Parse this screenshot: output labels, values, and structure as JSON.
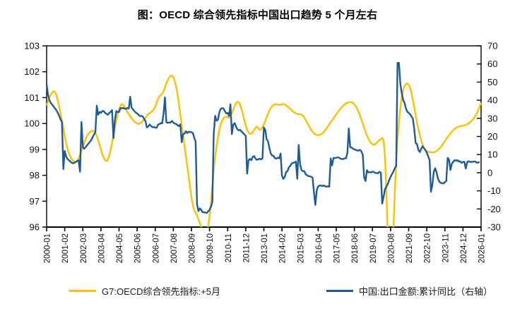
{
  "title": "图：OECD 综合领先指标中国出口趋势 5 个月左右",
  "legend": [
    {
      "label": "G7:OECD综合领先指标:+5月",
      "color": "#FFC000"
    },
    {
      "label": "中国:出口金额:累计同比（右轴）",
      "color": "#1F5B99"
    }
  ],
  "chart_data": {
    "type": "line",
    "title": "图：OECD 综合领先指标中国出口趋势 5 个月左右",
    "x_start": "2000-01",
    "x_end": "2026-01",
    "x_frequency": "monthly",
    "x_tick_labels": [
      "2000-01",
      "2001-02",
      "2002-03",
      "2003-04",
      "2004-05",
      "2005-06",
      "2006-07",
      "2007-08",
      "2008-09",
      "2009-10",
      "2010-11",
      "2011-12",
      "2013-01",
      "2014-02",
      "2015-03",
      "2016-04",
      "2017-05",
      "2018-06",
      "2019-07",
      "2020-08",
      "2021-09",
      "2022-10",
      "2023-11",
      "2024-12",
      "2026-01"
    ],
    "x_tick_step_months": 13,
    "left_axis": {
      "min": 96,
      "max": 103,
      "step": 1,
      "ticks": [
        96,
        97,
        98,
        99,
        100,
        101,
        102,
        103
      ]
    },
    "right_axis": {
      "min": -30,
      "max": 70,
      "step": 10,
      "ticks": [
        -30,
        -20,
        -10,
        0,
        10,
        20,
        30,
        40,
        50,
        60,
        70
      ]
    },
    "grid": false,
    "legend_position": "bottom",
    "series": [
      {
        "name": "G7:OECD综合领先指标:+5月",
        "axis": "left",
        "color": "#FFC000",
        "start": "2000-01",
        "values_by_year": [
          [
            100.7,
            100.85,
            101.0,
            101.12,
            101.2,
            101.25,
            101.22,
            101.1,
            100.9,
            100.65,
            100.4,
            100.12
          ],
          [
            99.82,
            99.52,
            99.25,
            99.02,
            98.85,
            98.72,
            98.62,
            98.56,
            98.52,
            98.52,
            98.56,
            98.65
          ],
          [
            98.8,
            98.95,
            99.1,
            99.25,
            99.4,
            99.52,
            99.6,
            99.66,
            99.7,
            99.72,
            99.7,
            99.64
          ],
          [
            99.52,
            99.36,
            99.18,
            99.0,
            98.82,
            98.68,
            98.58,
            98.55,
            98.6,
            98.76,
            98.98,
            99.25
          ],
          [
            99.55,
            99.85,
            100.12,
            100.35,
            100.55,
            100.68,
            100.75,
            100.72,
            100.65,
            100.55,
            100.45,
            100.36
          ],
          [
            100.28,
            100.2,
            100.14,
            100.08,
            100.03,
            100.0,
            99.98,
            100.0,
            100.04,
            100.1,
            100.16,
            100.22
          ],
          [
            100.3,
            100.36,
            100.4,
            100.44,
            100.48,
            100.55,
            100.65,
            100.8,
            100.95,
            101.05,
            101.1,
            101.15
          ],
          [
            101.25,
            101.4,
            101.55,
            101.68,
            101.78,
            101.84,
            101.85,
            101.8,
            101.65,
            101.42,
            101.12,
            100.75
          ],
          [
            100.35,
            99.95,
            99.55,
            99.15,
            98.75,
            98.35,
            97.95,
            97.55,
            97.15,
            96.85,
            96.65,
            96.55
          ],
          [
            96.45,
            96.3,
            96.15,
            96.0,
            95.88,
            95.8,
            95.78,
            95.85,
            96.05,
            96.4,
            96.9,
            97.55
          ],
          [
            98.2,
            98.7,
            99.1,
            99.45,
            99.75,
            99.95,
            100.1,
            100.2,
            100.25,
            100.26,
            100.24,
            100.22
          ],
          [
            100.28,
            100.4,
            100.55,
            100.68,
            100.78,
            100.84,
            100.82,
            100.72,
            100.55,
            100.35,
            100.12,
            99.92
          ],
          [
            99.76,
            99.66,
            99.6,
            99.6,
            99.66,
            99.75,
            99.84,
            99.88,
            99.82,
            99.76,
            99.78,
            99.86
          ],
          [
            99.96,
            100.1,
            100.24,
            100.38,
            100.5,
            100.6,
            100.67,
            100.72,
            100.74,
            100.74,
            100.73,
            100.72
          ],
          [
            100.73,
            100.74,
            100.75,
            100.73,
            100.7,
            100.66,
            100.61,
            100.56,
            100.51,
            100.46,
            100.42,
            100.39
          ],
          [
            100.37,
            100.36,
            100.36,
            100.34,
            100.3,
            100.23,
            100.14,
            100.04,
            99.94,
            99.84,
            99.75,
            99.68
          ],
          [
            99.62,
            99.58,
            99.56,
            99.55,
            99.56,
            99.58,
            99.62,
            99.67,
            99.74,
            99.81,
            99.89,
            99.97
          ],
          [
            100.05,
            100.12,
            100.2,
            100.28,
            100.36,
            100.43,
            100.5,
            100.57,
            100.63,
            100.69,
            100.74,
            100.78
          ],
          [
            100.8,
            100.82,
            100.83,
            100.82,
            100.79,
            100.74,
            100.67,
            100.57,
            100.45,
            100.31,
            100.16,
            100.0
          ],
          [
            99.84,
            99.68,
            99.54,
            99.42,
            99.32,
            99.25,
            99.2,
            99.18,
            99.2,
            99.25,
            99.31,
            99.36
          ],
          [
            99.4,
            99.44,
            99.35,
            98.7,
            97.3,
            95.7,
            94.4,
            93.9,
            94.5,
            95.9,
            97.3,
            98.5
          ],
          [
            99.4,
            100.05,
            100.6,
            101.0,
            101.28,
            101.45,
            101.53,
            101.55,
            101.5,
            101.38,
            101.18,
            100.92
          ],
          [
            100.62,
            100.32,
            100.04,
            99.78,
            99.55,
            99.35,
            99.18,
            99.06,
            98.98,
            98.93,
            98.9,
            98.9
          ],
          [
            98.89,
            98.88,
            98.89,
            98.91,
            98.94,
            98.98,
            99.03,
            99.09,
            99.16,
            99.24,
            99.32,
            99.4
          ],
          [
            99.48,
            99.55,
            99.62,
            99.68,
            99.74,
            99.79,
            99.83,
            99.86,
            99.88,
            99.89,
            99.9,
            99.92
          ],
          [
            99.93,
            99.95,
            99.97,
            100.0,
            100.04,
            100.09,
            100.15,
            100.22,
            100.3,
            100.4,
            100.52,
            100.66
          ],
          [
            100.8
          ]
        ]
      },
      {
        "name": "中国:出口金额:累计同比（右轴）",
        "axis": "right",
        "color": "#1F5B99",
        "start": "2000-01",
        "values_by_year": [
          [
            49.0,
            43.0,
            40.0,
            38.5,
            37.5,
            36.5,
            35.5,
            34.5,
            33.0,
            31.5,
            29.5,
            27.8
          ],
          [
            2.0,
            12.0,
            9.0,
            7.5,
            7.0,
            6.2,
            5.5,
            5.2,
            5.5,
            6.0,
            6.5,
            6.8
          ],
          [
            0.5,
            28.0,
            14.0,
            13.2,
            14.2,
            15.0,
            16.0,
            17.0,
            18.0,
            19.5,
            21.0,
            22.4
          ],
          [
            37.0,
            32.0,
            33.5,
            33.0,
            34.0,
            34.0,
            33.0,
            32.5,
            32.0,
            33.0,
            33.5,
            34.6
          ],
          [
            19.0,
            29.0,
            34.0,
            33.5,
            33.5,
            35.7,
            35.5,
            35.8,
            35.3,
            35.2,
            35.7,
            35.4
          ],
          [
            42.0,
            36.0,
            34.9,
            34.0,
            33.2,
            32.7,
            32.0,
            31.3,
            31.3,
            31.1,
            29.7,
            28.4
          ],
          [
            25.0,
            25.5,
            26.6,
            25.8,
            25.1,
            25.2,
            24.9,
            24.8,
            26.5,
            26.8,
            27.4,
            27.2
          ],
          [
            33.0,
            41.5,
            27.8,
            27.5,
            27.8,
            27.6,
            28.6,
            27.7,
            27.1,
            26.9,
            26.2,
            25.7
          ],
          [
            26.7,
            16.8,
            21.4,
            21.5,
            22.9,
            21.9,
            22.6,
            22.4,
            22.3,
            21.9,
            19.3,
            17.2
          ],
          [
            -17.5,
            -21.2,
            -19.7,
            -20.5,
            -21.8,
            -21.8,
            -22.0,
            -22.2,
            -21.3,
            -20.5,
            -18.8,
            -16.0
          ],
          [
            21.0,
            31.4,
            28.7,
            29.2,
            33.2,
            35.2,
            35.6,
            35.5,
            34.0,
            32.7,
            33.0,
            31.3
          ],
          [
            37.7,
            21.3,
            26.5,
            27.4,
            25.5,
            24.0,
            23.4,
            23.6,
            22.7,
            22.0,
            21.1,
            20.3
          ],
          [
            -0.5,
            6.9,
            7.6,
            6.9,
            8.7,
            9.2,
            7.8,
            7.1,
            7.4,
            7.8,
            7.3,
            7.9
          ],
          [
            25.0,
            23.6,
            18.4,
            17.4,
            13.5,
            10.4,
            9.5,
            9.2,
            8.0,
            7.8,
            8.3,
            7.9
          ],
          [
            10.6,
            -1.6,
            -3.4,
            -2.3,
            0.4,
            0.9,
            3.0,
            3.8,
            5.1,
            5.4,
            5.7,
            6.1
          ],
          [
            -3.3,
            15.3,
            4.7,
            1.6,
            0.8,
            0.9,
            -0.8,
            -1.4,
            -1.9,
            -2.0,
            -2.2,
            -2.8
          ],
          [
            -11.2,
            -17.8,
            -9.6,
            -7.6,
            -7.1,
            -7.1,
            -7.4,
            -7.0,
            -7.5,
            -7.7,
            -7.5,
            -7.7
          ],
          [
            7.9,
            4.0,
            8.2,
            8.1,
            8.2,
            8.5,
            8.3,
            7.8,
            7.5,
            7.5,
            8.0,
            7.9
          ],
          [
            11.1,
            24.4,
            14.1,
            13.9,
            13.3,
            12.8,
            12.6,
            12.2,
            12.2,
            12.6,
            11.8,
            9.9
          ],
          [
            -2.4,
            -4.6,
            1.4,
            0.2,
            0.4,
            0.1,
            0.6,
            0.4,
            -0.1,
            -0.2,
            -0.3,
            0.5
          ],
          [
            0.0,
            -17.1,
            -13.3,
            -9.0,
            -7.7,
            -6.2,
            -4.1,
            -2.3,
            -0.8,
            0.5,
            2.5,
            3.6
          ],
          [
            60.6,
            60.6,
            49.0,
            44.0,
            40.2,
            38.6,
            35.4,
            33.7,
            33.0,
            32.3,
            31.1,
            29.9
          ],
          [
            24.0,
            16.3,
            15.8,
            12.5,
            11.4,
            13.2,
            14.6,
            13.5,
            12.5,
            11.1,
            9.1,
            7.0
          ],
          [
            -10.5,
            -6.8,
            0.5,
            2.5,
            0.3,
            -3.2,
            -5.0,
            -5.6,
            -5.7,
            -6.0,
            -5.2,
            -4.6
          ],
          [
            8.2,
            7.1,
            1.5,
            4.9,
            6.1,
            6.9,
            6.7,
            6.9,
            6.2,
            6.3,
            5.4,
            5.9
          ],
          [
            6.0,
            2.3,
            5.8,
            6.4,
            6.0,
            5.9,
            6.1,
            6.1,
            6.1,
            5.5,
            5.7,
            5.8
          ]
        ]
      }
    ]
  }
}
